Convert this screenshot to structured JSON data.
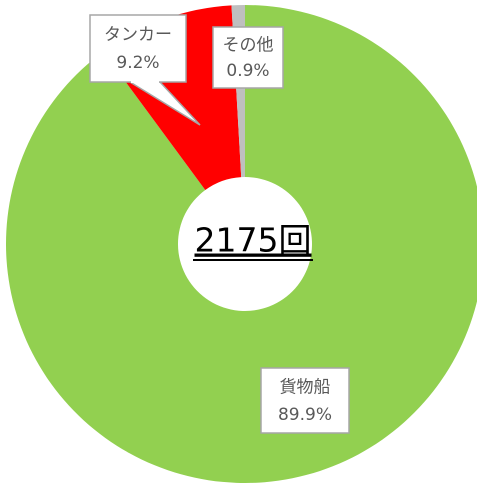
{
  "chart_data": {
    "type": "donut",
    "categories": [
      "貨物船",
      "タンカー",
      "その他"
    ],
    "values": [
      89.9,
      9.2,
      0.9
    ],
    "value_labels": [
      "89.9%",
      "9.2%",
      "0.9%"
    ],
    "colors": [
      "#92d050",
      "#ff0000",
      "#bfbfbf"
    ],
    "center_label": "2175回"
  }
}
